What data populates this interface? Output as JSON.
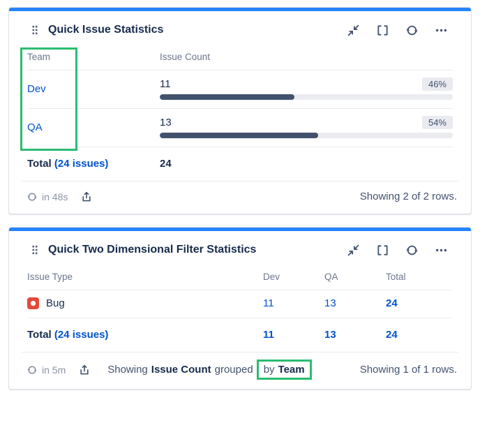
{
  "colors": {
    "accent_blue": "#2684FF",
    "link_blue": "#0052CC",
    "bar_fill": "#42526E",
    "annotation_green": "#2BBC71",
    "bug_red": "#E5493A"
  },
  "stats_gadget": {
    "title": "Quick Issue Statistics",
    "columns": {
      "team": "Team",
      "issue_count": "Issue Count"
    },
    "rows": [
      {
        "team": "Dev",
        "count": "11",
        "percent": "46%",
        "bar_pct": 46
      },
      {
        "team": "QA",
        "count": "13",
        "percent": "54%",
        "bar_pct": 54
      }
    ],
    "total": {
      "label": "Total",
      "issues_link": "(24 issues)",
      "value": "24"
    },
    "footer": {
      "refresh_in": "in 48s",
      "showing": "Showing 2 of 2 rows."
    }
  },
  "two_dimensional_gadget": {
    "title": "Quick Two Dimensional Filter Statistics",
    "columns": {
      "issue_type": "Issue Type",
      "dev": "Dev",
      "qa": "QA",
      "total": "Total"
    },
    "rows": [
      {
        "issue_type": "Bug",
        "dev": "11",
        "qa": "13",
        "total": "24"
      }
    ],
    "total_row": {
      "label": "Total",
      "issues_link": "(24 issues)",
      "dev": "11",
      "qa": "13",
      "total": "24"
    },
    "footer": {
      "refresh_in": "in 5m",
      "showing_prefix": "Showing",
      "grouped_field": "Issue Count",
      "grouped_word": "grouped",
      "by_word": "by",
      "group_by_value": "Team",
      "showing": "Showing 1 of 1 rows."
    }
  }
}
